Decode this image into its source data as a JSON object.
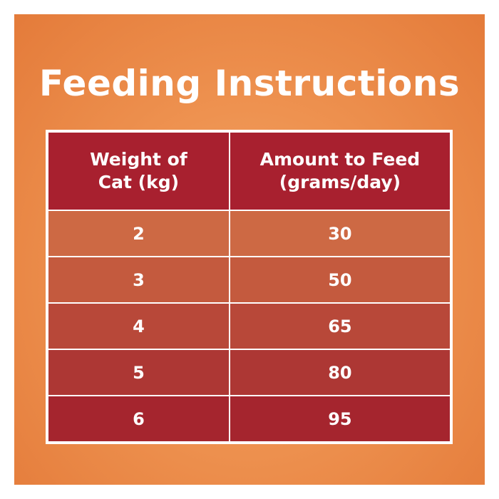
{
  "title": "Feeding Instructions",
  "table": {
    "headers": [
      {
        "line1": "Weight of",
        "line2": "Cat (kg)"
      },
      {
        "line1": "Amount to Feed",
        "line2": "(grams/day)"
      }
    ],
    "rows": [
      {
        "weight": "2",
        "amount": "30"
      },
      {
        "weight": "3",
        "amount": "50"
      },
      {
        "weight": "4",
        "amount": "65"
      },
      {
        "weight": "5",
        "amount": "80"
      },
      {
        "weight": "6",
        "amount": "95"
      }
    ]
  },
  "colors": {
    "background": "#ee9250",
    "header": "#a8202f",
    "text": "#ffffff"
  }
}
